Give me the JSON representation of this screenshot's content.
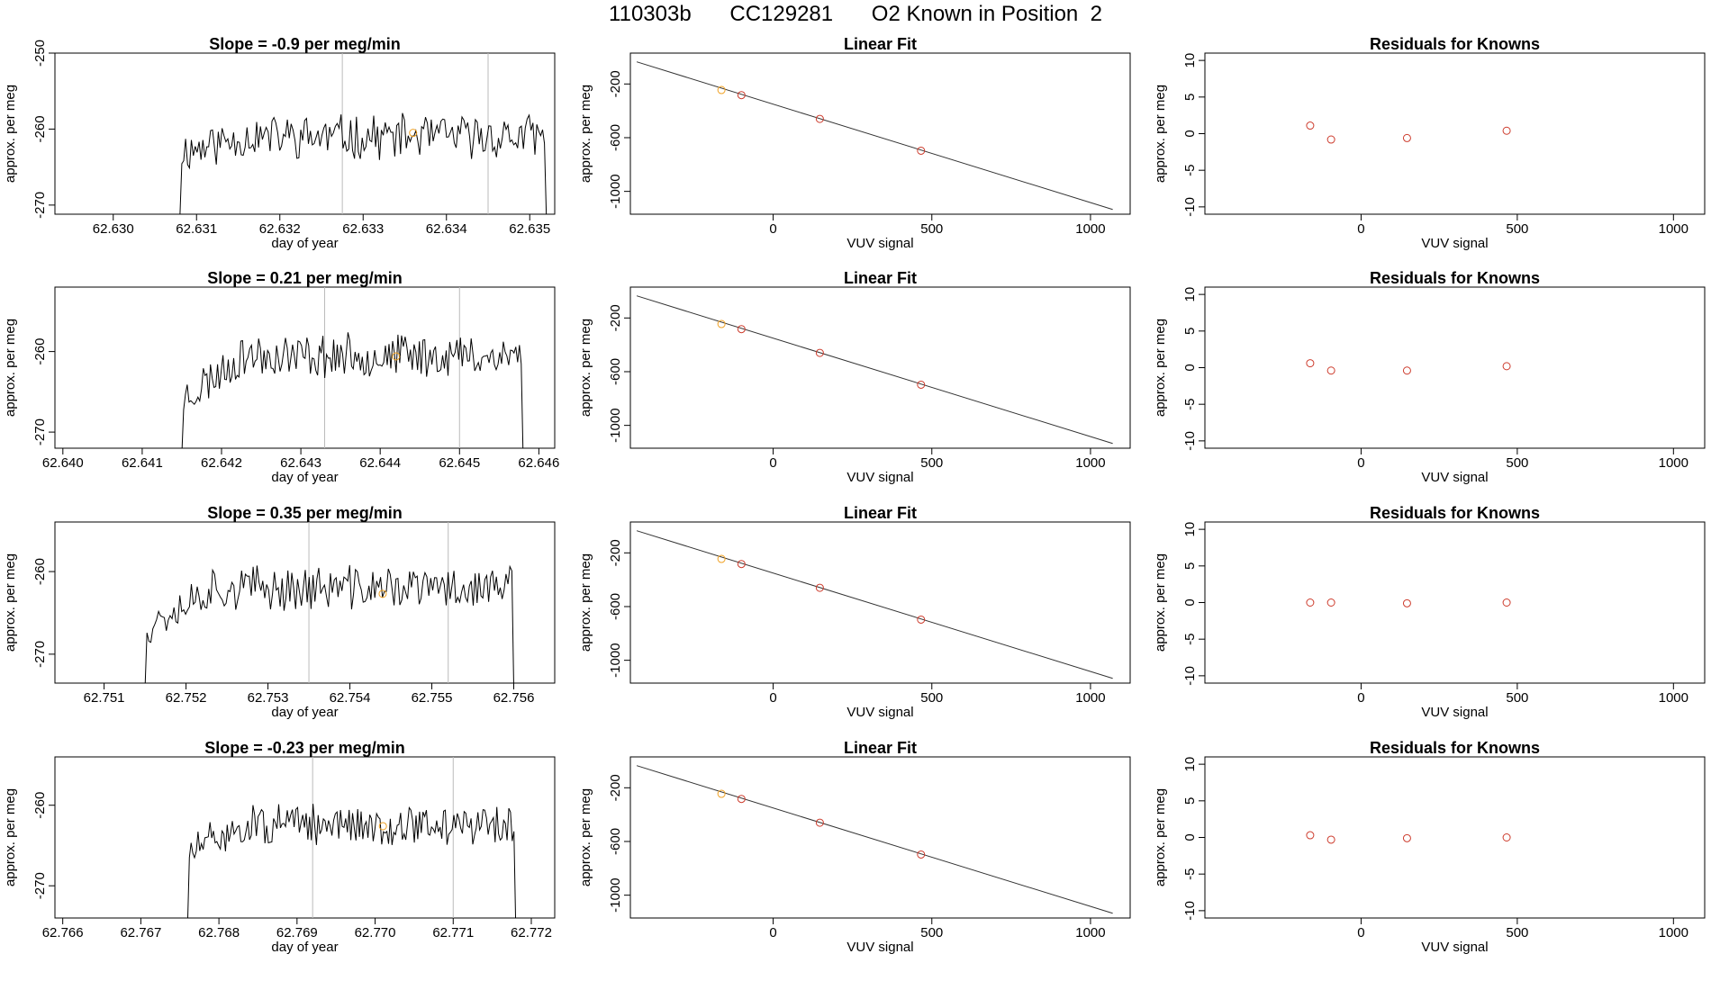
{
  "header": {
    "run_id": "110303b",
    "cylinder_id": "CC129281",
    "description": "O2 Known in Position  2"
  },
  "colors": {
    "trace": "#000000",
    "fit_line": "#333333",
    "known_points": "#cd3b2c",
    "highlight_points": "#f0a020",
    "marker_lines": "#bbbbbb"
  },
  "chart_data": [
    {
      "type": "line",
      "row": 1,
      "panel": "time-series",
      "title_prefix": "Slope = ",
      "slope": "-0.9",
      "title_unit": "per meg/min",
      "xlabel": "day of year",
      "ylabel": "approx. per meg",
      "xlim": [
        62.6293,
        62.6353
      ],
      "ylim": [
        -271.2,
        -250
      ],
      "xticks": [
        "62.630",
        "62.631",
        "62.632",
        "62.633",
        "62.634",
        "62.635"
      ],
      "yticks": [
        -270,
        -260,
        -250
      ],
      "trace_start": 62.6308,
      "trace_end": 62.6352,
      "trace_min": -271.5,
      "trace_level": -261,
      "trace_amp": 2.6,
      "seed": 11,
      "trace_ramp_top": -263,
      "markers": [
        62.63275,
        62.6345
      ],
      "highlight_point": {
        "x": 62.6336,
        "y": -260.5
      }
    },
    {
      "type": "line",
      "row": 2,
      "panel": "time-series",
      "title_prefix": "Slope = ",
      "slope": "0.21",
      "title_unit": "per meg/min",
      "xlabel": "day of year",
      "ylabel": "approx. per meg",
      "xlim": [
        62.6399,
        62.6462
      ],
      "ylim": [
        -272,
        -252
      ],
      "xticks": [
        "62.640",
        "62.641",
        "62.642",
        "62.643",
        "62.644",
        "62.645",
        "62.646"
      ],
      "yticks": [
        -270,
        -260
      ],
      "trace_start": 62.6415,
      "trace_end": 62.6458,
      "trace_min": -272.5,
      "trace_level": -260.5,
      "trace_amp": 2.4,
      "seed": 23,
      "trace_ramp_top": -266,
      "markers": [
        62.6433,
        62.645
      ],
      "highlight_point": {
        "x": 62.6442,
        "y": -260.6
      }
    },
    {
      "type": "line",
      "row": 3,
      "panel": "time-series",
      "title_prefix": "Slope = ",
      "slope": "0.35",
      "title_unit": "per meg/min",
      "xlabel": "day of year",
      "ylabel": "approx. per meg",
      "xlim": [
        62.7504,
        62.7565
      ],
      "ylim": [
        -273.5,
        -254
      ],
      "xticks": [
        "62.751",
        "62.752",
        "62.753",
        "62.754",
        "62.755",
        "62.756"
      ],
      "yticks": [
        -270,
        -260
      ],
      "trace_start": 62.7515,
      "trace_end": 62.756,
      "trace_min": -274,
      "trace_level": -262,
      "trace_amp": 2.4,
      "seed": 37,
      "trace_ramp_top": -266.5,
      "markers": [
        62.7535,
        62.7552
      ],
      "highlight_point": {
        "x": 62.7544,
        "y": -262.7
      }
    },
    {
      "type": "line",
      "row": 4,
      "panel": "time-series",
      "title_prefix": "Slope = ",
      "slope": "-0.23",
      "title_unit": "per meg/min",
      "xlabel": "day of year",
      "ylabel": "approx. per meg",
      "xlim": [
        62.7659,
        62.7723
      ],
      "ylim": [
        -274,
        -254
      ],
      "xticks": [
        "62.766",
        "62.767",
        "62.768",
        "62.769",
        "62.770",
        "62.771",
        "62.772"
      ],
      "yticks": [
        -270,
        -260
      ],
      "trace_start": 62.7676,
      "trace_end": 62.7718,
      "trace_min": -274.5,
      "trace_level": -262.5,
      "trace_amp": 2.2,
      "seed": 51,
      "trace_ramp_top": -266,
      "markers": [
        62.7692,
        62.771
      ],
      "highlight_point": {
        "x": 62.7701,
        "y": -262.6
      }
    },
    {
      "type": "scatter",
      "row": 1,
      "panel": "linear-fit",
      "title": "Linear Fit",
      "xlabel": "VUV signal",
      "ylabel": "approx. per meg",
      "xlim": [
        -450,
        1125
      ],
      "ylim": [
        -1170,
        30
      ],
      "xticks": [
        0,
        500,
        1000
      ],
      "yticks": [
        -200,
        -600,
        -1000
      ],
      "fit_line": {
        "x": [
          -430,
          1070
        ],
        "y": [
          -35,
          -1135
        ]
      },
      "points": [
        {
          "x": -163,
          "y": -245,
          "highlight": true
        },
        {
          "x": -100,
          "y": -283
        },
        {
          "x": 147,
          "y": -460
        },
        {
          "x": 466,
          "y": -697
        }
      ]
    },
    {
      "type": "scatter",
      "row": 2,
      "panel": "linear-fit",
      "title": "Linear Fit",
      "xlabel": "VUV signal",
      "ylabel": "approx. per meg",
      "xlim": [
        -450,
        1125
      ],
      "ylim": [
        -1170,
        30
      ],
      "xticks": [
        0,
        500,
        1000
      ],
      "yticks": [
        -200,
        -600,
        -1000
      ],
      "fit_line": {
        "x": [
          -430,
          1070
        ],
        "y": [
          -35,
          -1135
        ]
      },
      "points": [
        {
          "x": -163,
          "y": -245,
          "highlight": true
        },
        {
          "x": -100,
          "y": -283
        },
        {
          "x": 147,
          "y": -460
        },
        {
          "x": 466,
          "y": -697
        }
      ]
    },
    {
      "type": "scatter",
      "row": 3,
      "panel": "linear-fit",
      "title": "Linear Fit",
      "xlabel": "VUV signal",
      "ylabel": "approx. per meg",
      "xlim": [
        -450,
        1125
      ],
      "ylim": [
        -1170,
        30
      ],
      "xticks": [
        0,
        500,
        1000
      ],
      "yticks": [
        -200,
        -600,
        -1000
      ],
      "fit_line": {
        "x": [
          -430,
          1070
        ],
        "y": [
          -35,
          -1135
        ]
      },
      "points": [
        {
          "x": -163,
          "y": -245,
          "highlight": true
        },
        {
          "x": -100,
          "y": -283
        },
        {
          "x": 147,
          "y": -460
        },
        {
          "x": 466,
          "y": -697
        }
      ]
    },
    {
      "type": "scatter",
      "row": 4,
      "panel": "linear-fit",
      "title": "Linear Fit",
      "xlabel": "VUV signal",
      "ylabel": "approx. per meg",
      "xlim": [
        -450,
        1125
      ],
      "ylim": [
        -1170,
        30
      ],
      "xticks": [
        0,
        500,
        1000
      ],
      "yticks": [
        -200,
        -600,
        -1000
      ],
      "fit_line": {
        "x": [
          -430,
          1070
        ],
        "y": [
          -35,
          -1135
        ]
      },
      "points": [
        {
          "x": -163,
          "y": -245,
          "highlight": true
        },
        {
          "x": -100,
          "y": -283
        },
        {
          "x": 147,
          "y": -460
        },
        {
          "x": 466,
          "y": -697
        }
      ]
    },
    {
      "type": "scatter",
      "row": 1,
      "panel": "residuals",
      "title": "Residuals for Knowns",
      "xlabel": "VUV signal",
      "ylabel": "approx. per meg",
      "xlim": [
        -500,
        1100
      ],
      "ylim": [
        -11,
        11
      ],
      "xticks": [
        0,
        500,
        1000
      ],
      "yticks": [
        10,
        5,
        0,
        -5,
        -10
      ],
      "points": [
        {
          "x": -163,
          "y": 1.1
        },
        {
          "x": -96,
          "y": -0.8
        },
        {
          "x": 147,
          "y": -0.6
        },
        {
          "x": 466,
          "y": 0.4
        }
      ]
    },
    {
      "type": "scatter",
      "row": 2,
      "panel": "residuals",
      "title": "Residuals for Knowns",
      "xlabel": "VUV signal",
      "ylabel": "approx. per meg",
      "xlim": [
        -500,
        1100
      ],
      "ylim": [
        -11,
        11
      ],
      "xticks": [
        0,
        500,
        1000
      ],
      "yticks": [
        10,
        5,
        0,
        -5,
        -10
      ],
      "points": [
        {
          "x": -163,
          "y": 0.6
        },
        {
          "x": -96,
          "y": -0.4
        },
        {
          "x": 147,
          "y": -0.4
        },
        {
          "x": 466,
          "y": 0.2
        }
      ]
    },
    {
      "type": "scatter",
      "row": 3,
      "panel": "residuals",
      "title": "Residuals for Knowns",
      "xlabel": "VUV signal",
      "ylabel": "approx. per meg",
      "xlim": [
        -500,
        1100
      ],
      "ylim": [
        -11,
        11
      ],
      "xticks": [
        0,
        500,
        1000
      ],
      "yticks": [
        10,
        5,
        0,
        -5,
        -10
      ],
      "points": [
        {
          "x": -163,
          "y": 0.0
        },
        {
          "x": -96,
          "y": 0.0
        },
        {
          "x": 147,
          "y": -0.1
        },
        {
          "x": 466,
          "y": 0.0
        }
      ]
    },
    {
      "type": "scatter",
      "row": 4,
      "panel": "residuals",
      "title": "Residuals for Knowns",
      "xlabel": "VUV signal",
      "ylabel": "approx. per meg",
      "xlim": [
        -500,
        1100
      ],
      "ylim": [
        -11,
        11
      ],
      "xticks": [
        0,
        500,
        1000
      ],
      "yticks": [
        10,
        5,
        0,
        -5,
        -10
      ],
      "points": [
        {
          "x": -163,
          "y": 0.3
        },
        {
          "x": -96,
          "y": -0.3
        },
        {
          "x": 147,
          "y": -0.1
        },
        {
          "x": 466,
          "y": 0.0
        }
      ]
    }
  ]
}
